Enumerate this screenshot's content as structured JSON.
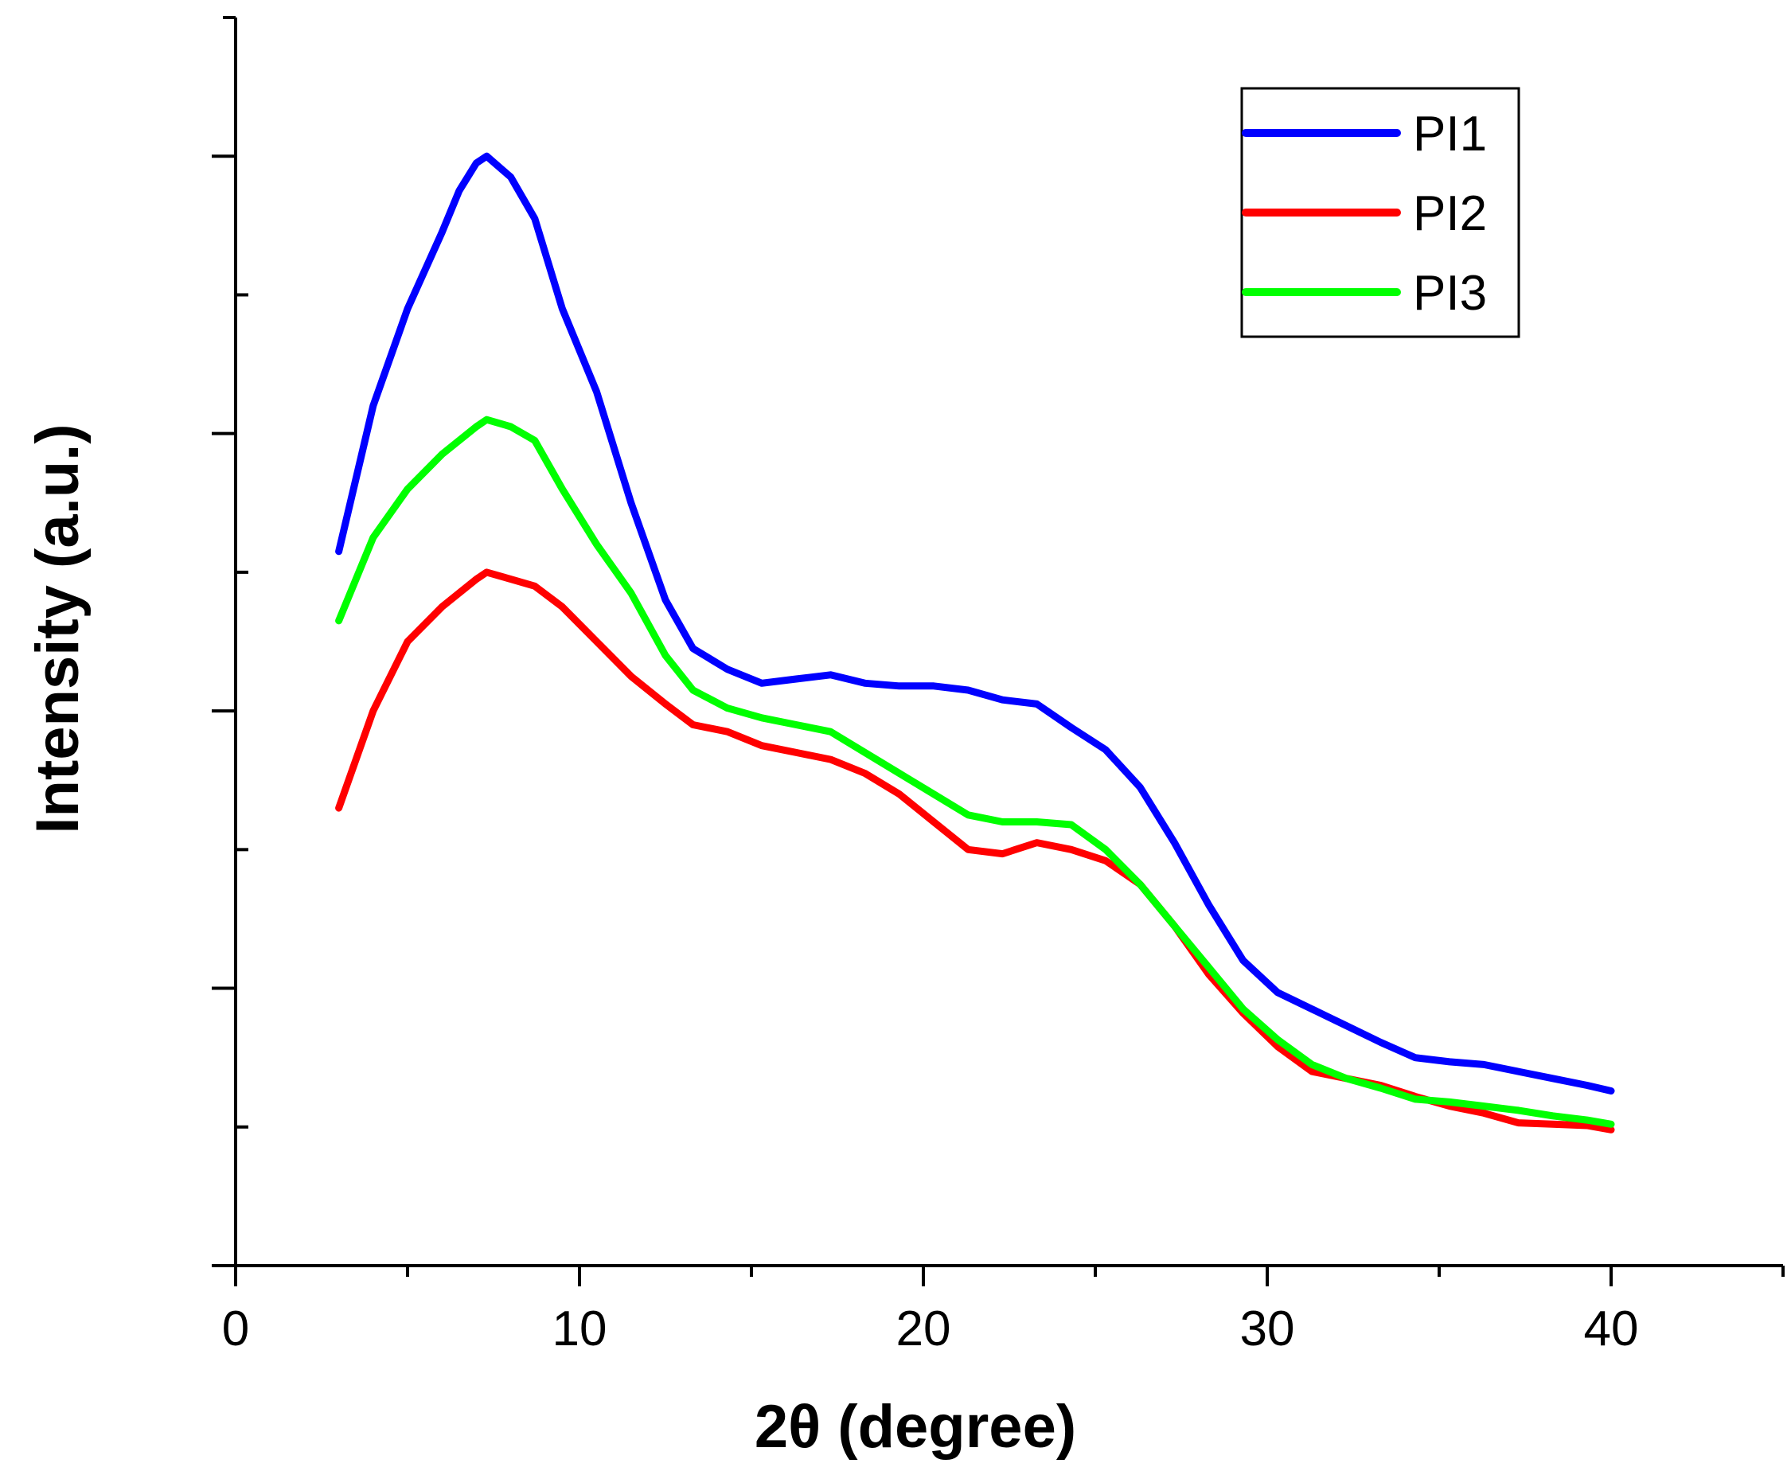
{
  "chart_data": {
    "type": "line",
    "title": "",
    "xlabel": "2θ (degree)",
    "ylabel": "Intensity (a.u.)",
    "xlim": [
      0,
      45
    ],
    "ylim": [
      0,
      9
    ],
    "x_ticks": [
      0,
      10,
      20,
      30,
      40
    ],
    "x_tick_labels": [
      "0",
      "10",
      "20",
      "30",
      "40"
    ],
    "x_minor_ticks": [
      5,
      15,
      25,
      35,
      45
    ],
    "y_ticks": [
      1,
      2,
      3,
      4,
      5,
      6,
      7,
      8
    ],
    "y_tick_labels": [],
    "legend_position": "top-right",
    "series": [
      {
        "name": "PI1",
        "color": "#0000ff",
        "x": [
          3,
          4,
          5,
          6,
          6.5,
          7,
          7.3,
          8,
          8.7,
          9.5,
          10.5,
          11.5,
          12.5,
          13.3,
          14.3,
          15.3,
          16.3,
          17.3,
          18.3,
          19.3,
          20.3,
          21.3,
          22.3,
          23.3,
          24.3,
          25.3,
          26.3,
          27.3,
          28.3,
          29.3,
          30.3,
          31.3,
          32.3,
          33.3,
          34.3,
          35.3,
          36.3,
          37.3,
          38.3,
          39.3,
          40
        ],
        "values": [
          5.15,
          6.2,
          6.9,
          7.45,
          7.75,
          7.95,
          8.0,
          7.85,
          7.55,
          6.9,
          6.3,
          5.5,
          4.8,
          4.45,
          4.3,
          4.2,
          4.23,
          4.26,
          4.2,
          4.18,
          4.18,
          4.15,
          4.08,
          4.05,
          3.88,
          3.72,
          3.45,
          3.05,
          2.6,
          2.2,
          1.97,
          1.85,
          1.73,
          1.61,
          1.5,
          1.47,
          1.45,
          1.4,
          1.35,
          1.3,
          1.26
        ]
      },
      {
        "name": "PI2",
        "color": "#ff0000",
        "x": [
          3,
          4,
          5,
          6,
          6.5,
          7,
          7.3,
          8,
          8.7,
          9.5,
          10.5,
          11.5,
          12.5,
          13.3,
          14.3,
          15.3,
          16.3,
          17.3,
          18.3,
          19.3,
          20.3,
          21.3,
          22.3,
          23.3,
          24.3,
          25.3,
          26.3,
          27.3,
          28.3,
          29.3,
          30.3,
          31.3,
          32.3,
          33.3,
          34.3,
          35.3,
          36.3,
          37.3,
          38.3,
          39.3,
          40
        ],
        "values": [
          3.3,
          4.0,
          4.5,
          4.75,
          4.85,
          4.95,
          5.0,
          4.95,
          4.9,
          4.75,
          4.5,
          4.25,
          4.05,
          3.9,
          3.85,
          3.75,
          3.7,
          3.65,
          3.55,
          3.4,
          3.2,
          3.0,
          2.97,
          3.05,
          3.0,
          2.92,
          2.75,
          2.45,
          2.1,
          1.82,
          1.58,
          1.4,
          1.35,
          1.3,
          1.22,
          1.15,
          1.1,
          1.03,
          1.02,
          1.01,
          0.98
        ]
      },
      {
        "name": "PI3",
        "color": "#00ff00",
        "x": [
          3,
          4,
          5,
          6,
          6.5,
          7,
          7.3,
          8,
          8.7,
          9.5,
          10.5,
          11.5,
          12.5,
          13.3,
          14.3,
          15.3,
          16.3,
          17.3,
          18.3,
          19.3,
          20.3,
          21.3,
          22.3,
          23.3,
          24.3,
          25.3,
          26.3,
          27.3,
          28.3,
          29.3,
          30.3,
          31.3,
          32.3,
          33.3,
          34.3,
          35.3,
          36.3,
          37.3,
          38.3,
          39.3,
          40
        ],
        "values": [
          4.65,
          5.25,
          5.6,
          5.85,
          5.95,
          6.05,
          6.1,
          6.05,
          5.95,
          5.6,
          5.2,
          4.85,
          4.4,
          4.15,
          4.02,
          3.95,
          3.9,
          3.85,
          3.7,
          3.55,
          3.4,
          3.25,
          3.2,
          3.2,
          3.18,
          3.0,
          2.75,
          2.45,
          2.15,
          1.85,
          1.63,
          1.45,
          1.35,
          1.28,
          1.2,
          1.18,
          1.15,
          1.12,
          1.08,
          1.05,
          1.02
        ]
      }
    ]
  }
}
